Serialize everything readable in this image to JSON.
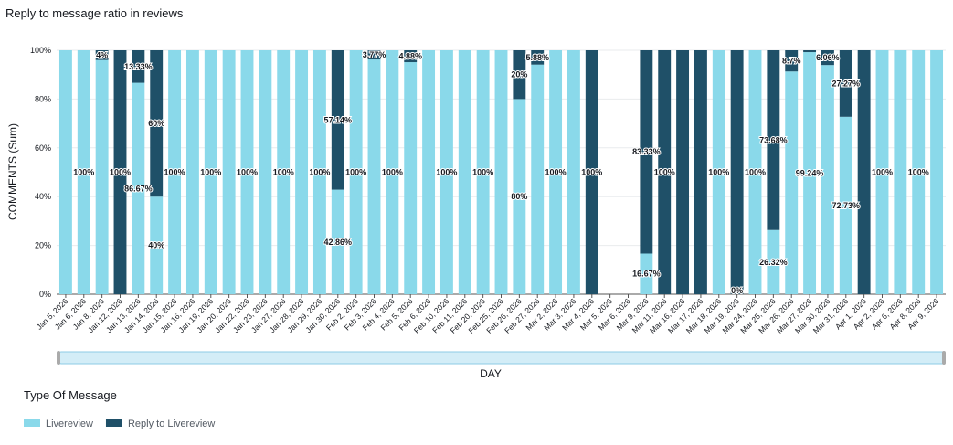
{
  "chart_data": {
    "type": "stacked_bar",
    "title": "Reply to message ratio in reviews",
    "x_label": "DAY",
    "y_label": "COMMENTS (Sum)",
    "legend_title": "Type Of Message",
    "categories": [
      "Jan 5, 2026",
      "Jan 6, 2026",
      "Jan 8, 2026",
      "Jan 12, 2026",
      "Jan 13, 2026",
      "Jan 14, 2026",
      "Jan 15, 2026",
      "Jan 16, 2026",
      "Jan 19, 2026",
      "Jan 20, 2026",
      "Jan 22, 2026",
      "Jan 23, 2026",
      "Jan 27, 2026",
      "Jan 28, 2026",
      "Jan 29, 2026",
      "Jan 30, 2026",
      "Feb 2, 2026",
      "Feb 3, 2026",
      "Feb 4, 2026",
      "Feb 5, 2026",
      "Feb 6, 2026",
      "Feb 10, 2026",
      "Feb 11, 2026",
      "Feb 20, 2026",
      "Feb 25, 2026",
      "Feb 26, 2026",
      "Feb 27, 2026",
      "Mar 2, 2026",
      "Mar 3, 2026",
      "Mar 4, 2026",
      "Mar 5, 2026",
      "Mar 6, 2026",
      "Mar 9, 2026",
      "Mar 11, 2026",
      "Mar 16, 2026",
      "Mar 17, 2026",
      "Mar 18, 2026",
      "Mar 19, 2026",
      "Mar 24, 2026",
      "Mar 25, 2026",
      "Mar 26, 2026",
      "Mar 27, 2026",
      "Mar 30, 2026",
      "Mar 31, 2026",
      "Apr 1, 2026",
      "Apr 2, 2026",
      "Apr 6, 2026",
      "Apr 8, 2026",
      "Apr 9, 2026"
    ],
    "series": [
      {
        "name": "Livereview",
        "color": "#8ad9ea",
        "values": [
          100,
          100,
          96,
          null,
          86.67,
          40,
          100,
          100,
          100,
          100,
          100,
          100,
          100,
          100,
          100,
          42.86,
          100,
          96.23,
          100,
          95.12,
          100,
          100,
          100,
          100,
          100,
          80,
          94.12,
          100,
          100,
          null,
          null,
          null,
          16.67,
          null,
          null,
          null,
          100,
          0,
          100,
          26.32,
          91.3,
          99.24,
          93.94,
          72.73,
          null,
          100,
          100,
          100,
          100
        ],
        "value_labels": [
          null,
          "100%",
          null,
          null,
          "86.67%",
          "40%",
          "100%",
          null,
          "100%",
          null,
          "100%",
          null,
          "100%",
          null,
          "100%",
          "42.86%",
          "100%",
          null,
          "100%",
          null,
          null,
          "100%",
          null,
          "100%",
          null,
          "80%",
          null,
          "100%",
          null,
          null,
          null,
          null,
          "16.67%",
          null,
          null,
          null,
          "100%",
          "0%",
          "100%",
          "26.32%",
          null,
          "99.24%",
          null,
          "72.73%",
          null,
          "100%",
          null,
          "100%",
          null
        ]
      },
      {
        "name": "Reply to Livereview",
        "color": "#1f5068",
        "values": [
          null,
          null,
          4,
          100,
          13.33,
          60,
          null,
          null,
          null,
          null,
          null,
          null,
          null,
          null,
          null,
          57.14,
          null,
          3.77,
          null,
          4.88,
          null,
          null,
          null,
          null,
          null,
          20,
          5.88,
          null,
          null,
          100,
          null,
          null,
          83.33,
          100,
          100,
          100,
          null,
          100,
          null,
          73.68,
          8.7,
          0.76,
          6.06,
          27.27,
          100,
          null,
          null,
          null,
          null
        ],
        "value_labels": [
          null,
          null,
          "4%",
          "100%",
          "13.33%",
          "60%",
          null,
          null,
          null,
          null,
          null,
          null,
          null,
          null,
          null,
          "57.14%",
          null,
          "3.77%",
          null,
          "4.88%",
          null,
          null,
          null,
          null,
          null,
          "20%",
          "5.88%",
          null,
          null,
          "100%",
          null,
          null,
          "83.33%",
          "100%",
          null,
          null,
          null,
          null,
          null,
          "73.68%",
          "8.7%",
          null,
          "6.06%",
          "27.27%",
          null,
          null,
          null,
          null,
          null
        ]
      }
    ],
    "ylim": [
      0,
      100
    ],
    "yticks": [
      {
        "value": 0,
        "label": "0%"
      },
      {
        "value": 20,
        "label": "20%"
      },
      {
        "value": 40,
        "label": "40%"
      },
      {
        "value": 60,
        "label": "60%"
      },
      {
        "value": 80,
        "label": "80%"
      },
      {
        "value": 100,
        "label": "100%"
      }
    ],
    "grid": true
  }
}
